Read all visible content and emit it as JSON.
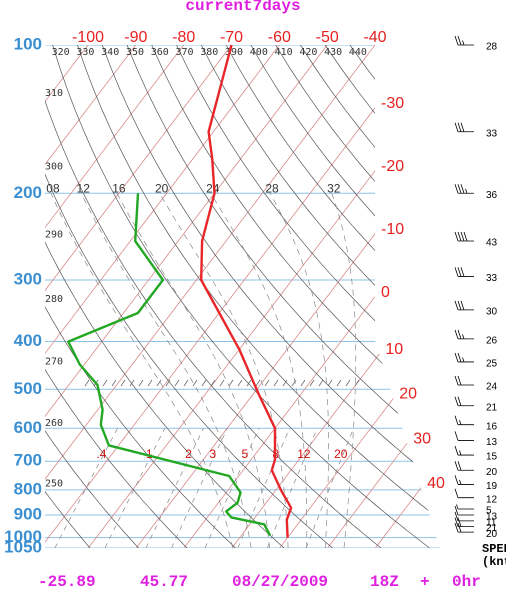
{
  "chart_data": {
    "type": "skewt",
    "title": "current7days",
    "ylim": [
      1050,
      100
    ],
    "yticks": [
      100,
      200,
      300,
      400,
      500,
      600,
      700,
      800,
      900,
      1000,
      1050
    ],
    "log_y": true,
    "xlim": [
      -109,
      -40
    ],
    "xticks": [
      -100,
      -90,
      -80,
      -70,
      -60,
      -50,
      -40,
      -30,
      -20,
      -10,
      0,
      10,
      20,
      30,
      40
    ],
    "series": [
      {
        "color": "#e8262a",
        "pressure": [
          100,
          150,
          170,
          200,
          250,
          300,
          415,
          510,
          600,
          695,
          730,
          800,
          870,
          920,
          1000
        ],
        "values": [
          -70,
          -61,
          -56,
          -50,
          -45,
          -39,
          -20,
          -9,
          0,
          5,
          6,
          11,
          16,
          17,
          20
        ]
      },
      {
        "color": "#22a822",
        "pressure": [
          200,
          250,
          300,
          350,
          400,
          445,
          490,
          550,
          590,
          650,
          750,
          810,
          850,
          885,
          910,
          940,
          990
        ],
        "values": [
          -66,
          -59,
          -47,
          -47,
          -57,
          -51,
          -44,
          -39,
          -37,
          -32,
          -2,
          3,
          4,
          3,
          5,
          13,
          16
        ]
      }
    ],
    "dry_adiabats": [
      250,
      260,
      270,
      280,
      290,
      300,
      310,
      320,
      330,
      340,
      350,
      360,
      370,
      380,
      390,
      400,
      410,
      420,
      430,
      440
    ],
    "moist_adiabats": [
      {
        "value": 8,
        "label": "08"
      },
      12,
      16,
      20,
      24,
      28,
      32
    ],
    "mixing_ratios": [
      {
        "value": 0.4,
        "label": ".4"
      },
      1,
      2,
      3,
      5,
      8,
      12,
      20
    ],
    "wind": {
      "title": "SPEED",
      "unit": "(knts)",
      "pressure": [
        100,
        150,
        200,
        250,
        295,
        345,
        395,
        440,
        490,
        540,
        590,
        635,
        680,
        730,
        780,
        830,
        875,
        900,
        925,
        950,
        975
      ],
      "speed": [
        28,
        33,
        36,
        43,
        33,
        30,
        26,
        25,
        24,
        21,
        16,
        13,
        15,
        20,
        19,
        12,
        5,
        13,
        11,
        21,
        20
      ]
    },
    "footer": {
      "lon": -25.89,
      "lat": 45.77,
      "date": "08/27/2009",
      "hour": "18Z",
      "plus": "+",
      "forecast": "0hr"
    }
  }
}
